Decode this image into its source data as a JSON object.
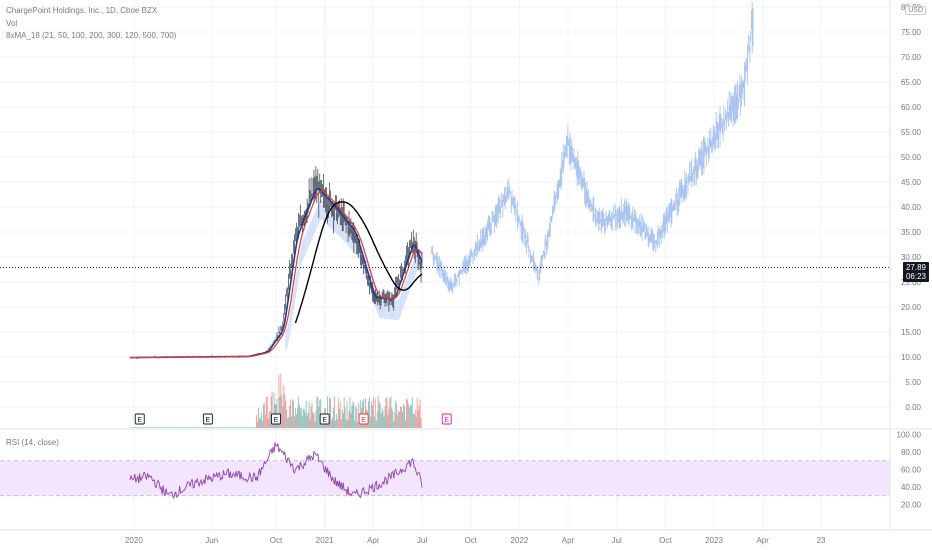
{
  "header": {
    "symbol_line": "ChargePoint Holdings, Inc., 1D, Cboe BZX",
    "volume_label": "Vol",
    "ma_label": "8xMA_18 (21, 50, 100, 200, 300, 120, 500, 700)",
    "currency": "USD"
  },
  "last_price": {
    "value": "27.89",
    "countdown": "06:23"
  },
  "rsi_label": "RSI (14, close)",
  "earnings_marker": "E",
  "chart_data": {
    "type": "line",
    "symbol": "ChargePoint Holdings, Inc.",
    "interval": "1D",
    "exchange": "Cboe BZX",
    "price_axis": {
      "ylim": [
        -2,
        80
      ],
      "ticks": [
        "80.00",
        "75.00",
        "70.00",
        "65.00",
        "60.00",
        "55.00",
        "50.00",
        "45.00",
        "40.00",
        "35.00",
        "30.00",
        "25.00",
        "20.00",
        "15.00",
        "10.00",
        "5.00",
        "0.00"
      ]
    },
    "time_axis": {
      "ticks": [
        "2020",
        "Jun",
        "Oct",
        "2021",
        "Apr",
        "Jul",
        "Oct",
        "2022",
        "Apr",
        "Jul",
        "Oct",
        "2023",
        "Apr",
        "23"
      ]
    },
    "rsi_axis": {
      "ticks": [
        "100.00",
        "80.00",
        "60.00",
        "40.00",
        "20.00"
      ],
      "band": [
        30,
        70
      ]
    },
    "price_candles_summary": [
      {
        "t": 2020.0,
        "close": 9.9
      },
      {
        "t": 2020.6,
        "close": 10.1
      },
      {
        "t": 2020.7,
        "close": 11.0
      },
      {
        "t": 2020.78,
        "close": 15.5
      },
      {
        "t": 2020.85,
        "close": 34.0
      },
      {
        "t": 2020.95,
        "close": 44.0
      },
      {
        "t": 2021.05,
        "close": 40.0
      },
      {
        "t": 2021.15,
        "close": 35.0
      },
      {
        "t": 2021.25,
        "close": 22.0
      },
      {
        "t": 2021.35,
        "close": 21.5
      },
      {
        "t": 2021.45,
        "close": 33.0
      },
      {
        "t": 2021.5,
        "close": 27.89
      }
    ],
    "projection_summary": [
      {
        "t": 2021.55,
        "close": 31
      },
      {
        "t": 2021.65,
        "close": 24
      },
      {
        "t": 2021.8,
        "close": 33
      },
      {
        "t": 2021.95,
        "close": 43
      },
      {
        "t": 2022.1,
        "close": 26
      },
      {
        "t": 2022.25,
        "close": 53
      },
      {
        "t": 2022.4,
        "close": 37
      },
      {
        "t": 2022.55,
        "close": 39
      },
      {
        "t": 2022.7,
        "close": 33
      },
      {
        "t": 2022.85,
        "close": 44
      },
      {
        "t": 2023.0,
        "close": 54
      },
      {
        "t": 2023.15,
        "close": 63
      },
      {
        "t": 2023.2,
        "close": 78
      }
    ],
    "earnings_dates": [
      2020.05,
      2020.4,
      2020.75,
      2021.0,
      2021.2,
      2021.55
    ],
    "rsi_series_summary": [
      {
        "t": 2020.0,
        "v": 48
      },
      {
        "t": 2020.1,
        "v": 52
      },
      {
        "t": 2020.2,
        "v": 30
      },
      {
        "t": 2020.35,
        "v": 46
      },
      {
        "t": 2020.5,
        "v": 55
      },
      {
        "t": 2020.65,
        "v": 50
      },
      {
        "t": 2020.75,
        "v": 88
      },
      {
        "t": 2020.85,
        "v": 60
      },
      {
        "t": 2020.95,
        "v": 77
      },
      {
        "t": 2021.05,
        "v": 47
      },
      {
        "t": 2021.15,
        "v": 30
      },
      {
        "t": 2021.25,
        "v": 40
      },
      {
        "t": 2021.35,
        "v": 52
      },
      {
        "t": 2021.45,
        "v": 70
      },
      {
        "t": 2021.5,
        "v": 43
      }
    ]
  },
  "colors": {
    "candle": "#131722",
    "projection": "#a9c3f0",
    "ma_fast": "#1c3c8c",
    "ma_mid": "#e53935",
    "ma_slow": "#000000",
    "volume_up": "#26a69a",
    "volume_down": "#ef5350",
    "rsi_line": "#8e44ad",
    "rsi_band": "#f3e5fd",
    "earnings_future": "#d81b9c",
    "earnings_recent": "#e53935"
  }
}
